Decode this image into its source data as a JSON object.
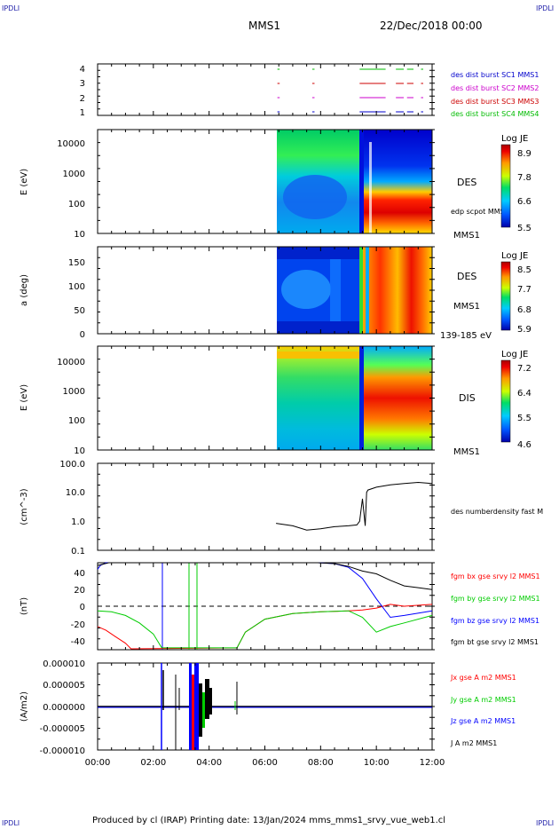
{
  "page": {
    "corner_labels": [
      "IPDLI",
      "IPDLI",
      "IPDLI",
      "IPDLI"
    ],
    "mission": "MMS1",
    "date": "22/Dec/2018 00:00",
    "footer": "Produced by cl (IRAP)   Printing date: 13/Jan/2024   mms_mms1_srvy_vue_web1.cl"
  },
  "colors": {
    "sc1": "#0000cc",
    "sc2": "#cc00cc",
    "sc3": "#cc0000",
    "sc4": "#00bb00",
    "bx": "#ff0000",
    "by": "#00cc00",
    "bz": "#0000ff",
    "bt": "#000000"
  },
  "chart_data": [
    {
      "type": "line",
      "panel": "burst-availability",
      "yticks": [
        "4",
        "3",
        "2",
        "1"
      ],
      "legend": [
        "des dist burst SC1 MMS1",
        "des dist burst SC2 MMS2",
        "des dist burst SC3 MMS3",
        "des dist burst SC4 MMS4"
      ],
      "segments_hours": [
        [
          6.45,
          6.5
        ],
        [
          7.7,
          7.75
        ],
        [
          9.4,
          10.3
        ],
        [
          10.7,
          10.95
        ],
        [
          11.1,
          11.3
        ],
        [
          11.6,
          11.65
        ]
      ]
    },
    {
      "type": "heatmap",
      "panel": "des-energy-spectrogram",
      "ylabel": "E (eV)",
      "yticks": [
        "10000",
        "1000",
        "100",
        "10"
      ],
      "label": "DES",
      "side_label": "MMS1",
      "overlay_label": "edp scpot MMS1",
      "colorbar": {
        "title": "Log JE",
        "ticks": [
          "8.9",
          "7.8",
          "6.6",
          "5.5"
        ]
      },
      "data_start_hours": 6.4
    },
    {
      "type": "heatmap",
      "panel": "des-pitch-angle",
      "ylabel": "a (deg)",
      "yticks": [
        "150",
        "100",
        "50",
        "0"
      ],
      "label": "DES",
      "side_label": "MMS1",
      "energy_range": "139-185 eV",
      "colorbar": {
        "title": "Log JE",
        "ticks": [
          "8.5",
          "7.7",
          "6.8",
          "5.9"
        ]
      },
      "data_start_hours": 6.4
    },
    {
      "type": "heatmap",
      "panel": "dis-energy-spectrogram",
      "ylabel": "E (eV)",
      "yticks": [
        "10000",
        "1000",
        "100",
        "10"
      ],
      "label": "DIS",
      "side_label": "MMS1",
      "colorbar": {
        "title": "Log JE",
        "ticks": [
          "7.2",
          "6.4",
          "5.5",
          "4.6"
        ]
      },
      "data_start_hours": 6.4
    },
    {
      "type": "line",
      "panel": "density",
      "ylabel": "(cm^-3)",
      "yticks": [
        "100.0",
        "10.0",
        "1.0",
        "0.1"
      ],
      "ylim": [
        0.1,
        100
      ],
      "scale": "log",
      "legend": [
        "des numberdensity fast M"
      ],
      "x": [
        6.4,
        7.0,
        7.5,
        8.0,
        8.5,
        9.0,
        9.3,
        9.4,
        9.5,
        9.6,
        9.65,
        9.7,
        10.0,
        10.5,
        11.0,
        11.5,
        12.0
      ],
      "y": [
        0.85,
        0.7,
        0.5,
        0.55,
        0.65,
        0.7,
        0.75,
        1.0,
        6.0,
        0.7,
        10.0,
        12.0,
        15.0,
        18.0,
        20.0,
        22.0,
        20.0
      ]
    },
    {
      "type": "line",
      "panel": "magnetic-field",
      "ylabel": "(nT)",
      "yticks": [
        "40",
        "20",
        "0",
        "-20",
        "-40"
      ],
      "ylim": [
        -47,
        47
      ],
      "legend": [
        "fgm bx gse srvy l2 MMS1",
        "fgm by gse srvy l2 MMS1",
        "fgm bz gse srvy l2 MMS1",
        "fgm bt gse srvy l2 MMS1"
      ],
      "series": [
        {
          "name": "fgm bx gse srvy l2 MMS1",
          "x": [
            0,
            0.3,
            0.6,
            1.0,
            1.2,
            5.0,
            5.3,
            6.0,
            7.0,
            8.0,
            9.0,
            9.5,
            10.0,
            10.5,
            11.0,
            12.0
          ],
          "y": [
            -22,
            -26,
            -32,
            -40,
            -46,
            -45,
            -28,
            -14,
            -8,
            -6,
            -5,
            -4,
            -2,
            2,
            0,
            2
          ]
        },
        {
          "name": "fgm by gse srvy l2 MMS1",
          "x": [
            0,
            0.5,
            1.0,
            1.5,
            2.0,
            2.3,
            5.0,
            5.3,
            6.0,
            7.0,
            8.0,
            9.0,
            9.5,
            10.0,
            10.5,
            11.0,
            12.0
          ],
          "y": [
            -5,
            -6,
            -10,
            -18,
            -30,
            -45,
            -45,
            -28,
            -14,
            -8,
            -6,
            -5,
            -12,
            -28,
            -22,
            -18,
            -10
          ]
        },
        {
          "name": "fgm bz gse srvy l2 MMS1",
          "x": [
            0,
            0.1,
            0.3,
            7.9,
            8.5,
            9.0,
            9.5,
            10.0,
            10.5,
            11.0,
            12.0
          ],
          "y": [
            40,
            44,
            47,
            47,
            46,
            42,
            30,
            8,
            -12,
            -10,
            -5
          ]
        },
        {
          "name": "fgm bt gse srvy l2 MMS1",
          "x": [
            0,
            0.4,
            7.9,
            8.5,
            9.0,
            9.5,
            10.0,
            10.5,
            11.0,
            11.5,
            12.0
          ],
          "y": [
            44,
            47,
            47,
            46,
            43,
            38,
            35,
            28,
            22,
            20,
            18
          ]
        }
      ]
    },
    {
      "type": "line",
      "panel": "current-density",
      "ylabel": "(A/m2)",
      "yticks": [
        "0.000010",
        "0.000005",
        "0.000000",
        "-0.000005",
        "-0.000010"
      ],
      "ylim": [
        -1e-05,
        1e-05
      ],
      "legend": [
        "Jx gse A m2 MMS1",
        "Jy gse A m2 MMS1",
        "Jz gse A m2 MMS1",
        "J A m2 MMS1"
      ],
      "xticks": [
        "00:00",
        "02:00",
        "04:00",
        "06:00",
        "08:00",
        "10:00",
        "12:00"
      ],
      "xlim": [
        0,
        12
      ]
    }
  ]
}
